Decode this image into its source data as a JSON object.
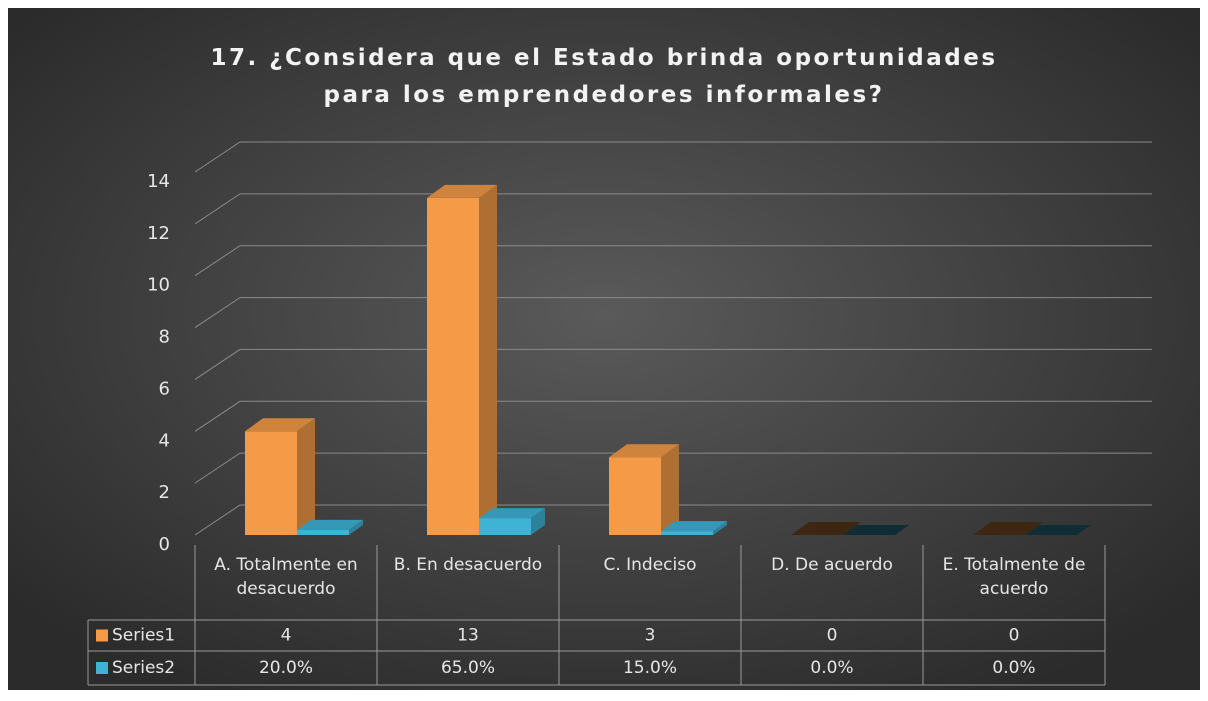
{
  "chart_data": {
    "type": "bar3d",
    "title": "17. ¿Considera que el Estado brinda oportunidades para los emprendedores informales?",
    "categories": [
      "A. Totalmente en desacuerdo",
      "B. En desacuerdo",
      "C. Indeciso",
      "D. De acuerdo",
      "E. Totalmente de acuerdo"
    ],
    "series": [
      {
        "name": "Series1",
        "color": "#f59a46",
        "values": [
          4,
          13,
          3,
          0,
          0
        ]
      },
      {
        "name": "Series2",
        "color": "#3eb3d6",
        "values": [
          0.2,
          0.65,
          0.15,
          0,
          0
        ],
        "value_labels": [
          "20.0%",
          "65.0%",
          "15.0%",
          "0.0%",
          "0.0%"
        ]
      }
    ],
    "ylim": [
      0,
      14
    ],
    "yticks": [
      0,
      2,
      4,
      6,
      8,
      10,
      12,
      14
    ],
    "grid": true,
    "data_table": true
  }
}
